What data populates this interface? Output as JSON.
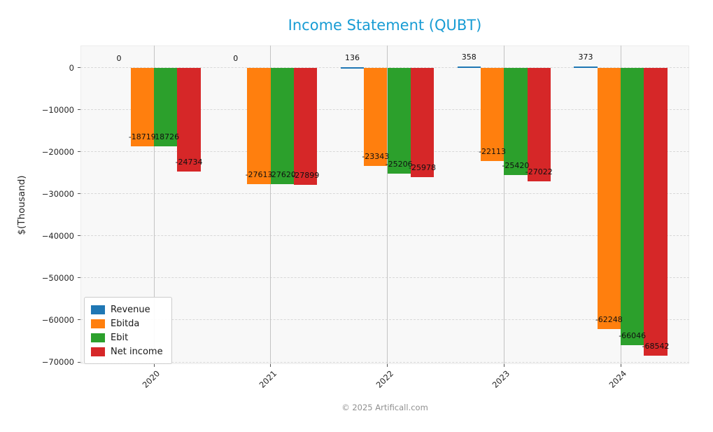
{
  "footer": "© 2025 Artificall.com",
  "colors": {
    "title_accent": "#189cd4",
    "plot_background": "#f8f8f8",
    "gridline_vertical": "#c3c3c3",
    "gridline_horizontal": "#d8d8d8"
  },
  "chart_data": {
    "type": "bar",
    "title": "Income Statement (QUBT)",
    "ylabel": "$(Thousand)",
    "xlabel": "",
    "categories": [
      "2020",
      "2021",
      "2022",
      "2023",
      "2024"
    ],
    "series": [
      {
        "name": "Revenue",
        "color": "#1f77b4",
        "values": [
          0,
          0,
          136,
          358,
          373
        ]
      },
      {
        "name": "Ebitda",
        "color": "#ff7f0e",
        "values": [
          -18719,
          -27613,
          -23343,
          -22113,
          -62248
        ]
      },
      {
        "name": "Ebit",
        "color": "#2ca02c",
        "values": [
          -18726,
          -27620,
          -25206,
          -25420,
          -66046
        ]
      },
      {
        "name": "Net income",
        "color": "#d62728",
        "values": [
          -24734,
          -27899,
          -25978,
          -27022,
          -68542
        ]
      }
    ],
    "yticks": [
      0,
      -10000,
      -20000,
      -30000,
      -40000,
      -50000,
      -60000,
      -70000
    ],
    "ylim": [
      -70500,
      5333
    ],
    "grid": true,
    "legend_position": "lower left",
    "bar_labels": true
  }
}
